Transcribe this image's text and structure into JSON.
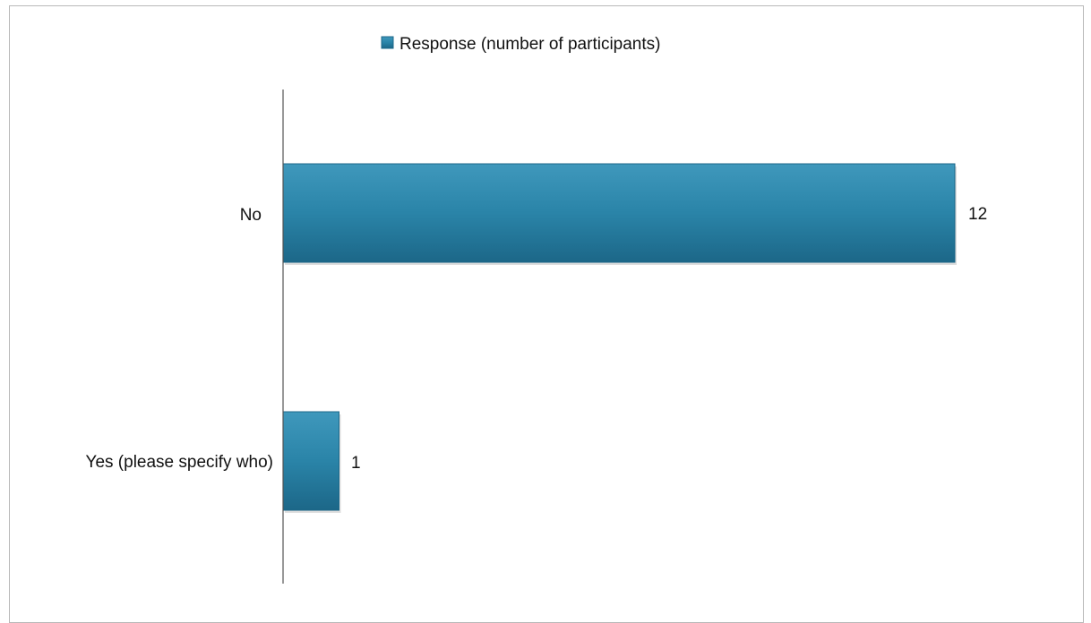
{
  "chart_data": {
    "type": "bar",
    "orientation": "horizontal",
    "categories": [
      "No",
      "Yes (please specify who)"
    ],
    "series": [
      {
        "name": "Response (number of participants)",
        "values": [
          12,
          1
        ]
      }
    ],
    "data_labels": [
      "12",
      "1"
    ],
    "xlim": [
      0,
      12
    ],
    "grid": false,
    "legend_position": "top",
    "colors": {
      "bar": "#2a84a8",
      "bar_dark": "#1c6788",
      "bar_light": "#3f98bc",
      "axis": "#555555"
    }
  }
}
